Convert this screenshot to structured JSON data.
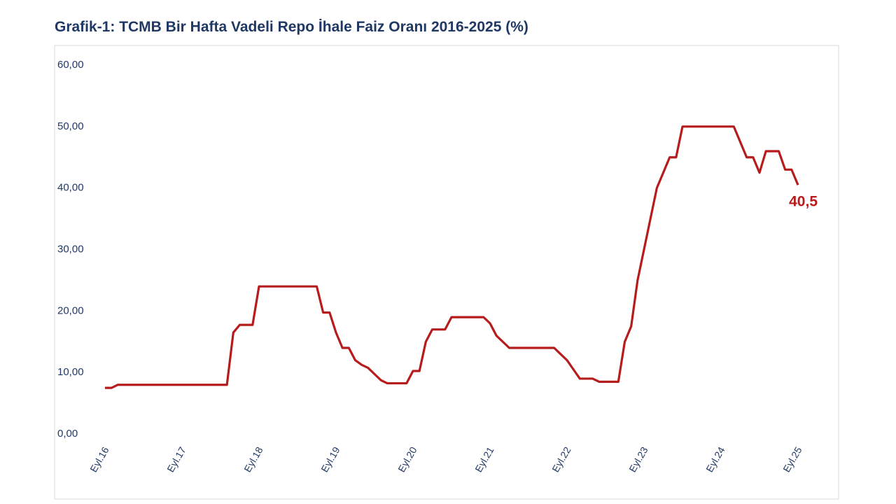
{
  "chart_data": {
    "type": "line",
    "title": "Grafik-1: TCMB Bir Hafta Vadeli Repo İhale Faiz Oranı 2016-2025 (%)",
    "x": [
      "2016-09",
      "2016-10",
      "2016-11",
      "2016-12",
      "2017-01",
      "2017-02",
      "2017-03",
      "2017-04",
      "2017-05",
      "2017-06",
      "2017-07",
      "2017-08",
      "2017-09",
      "2017-10",
      "2017-11",
      "2017-12",
      "2018-01",
      "2018-02",
      "2018-03",
      "2018-04",
      "2018-05",
      "2018-06",
      "2018-07",
      "2018-08",
      "2018-09",
      "2018-10",
      "2018-11",
      "2018-12",
      "2019-01",
      "2019-02",
      "2019-03",
      "2019-04",
      "2019-05",
      "2019-06",
      "2019-07",
      "2019-08",
      "2019-09",
      "2019-10",
      "2019-11",
      "2019-12",
      "2020-01",
      "2020-02",
      "2020-03",
      "2020-04",
      "2020-05",
      "2020-06",
      "2020-07",
      "2020-08",
      "2020-09",
      "2020-10",
      "2020-11",
      "2020-12",
      "2021-01",
      "2021-02",
      "2021-03",
      "2021-04",
      "2021-05",
      "2021-06",
      "2021-07",
      "2021-08",
      "2021-09",
      "2021-10",
      "2021-11",
      "2021-12",
      "2022-01",
      "2022-02",
      "2022-03",
      "2022-04",
      "2022-05",
      "2022-06",
      "2022-07",
      "2022-08",
      "2022-09",
      "2022-10",
      "2022-11",
      "2022-12",
      "2023-01",
      "2023-02",
      "2023-03",
      "2023-04",
      "2023-05",
      "2023-06",
      "2023-07",
      "2023-08",
      "2023-09",
      "2023-10",
      "2023-11",
      "2023-12",
      "2024-01",
      "2024-02",
      "2024-03",
      "2024-04",
      "2024-05",
      "2024-06",
      "2024-07",
      "2024-08",
      "2024-09",
      "2024-10",
      "2024-11",
      "2024-12",
      "2025-01",
      "2025-02",
      "2025-03",
      "2025-04",
      "2025-05",
      "2025-06",
      "2025-07",
      "2025-08",
      "2025-09"
    ],
    "values": [
      7.5,
      7.5,
      8,
      8,
      8,
      8,
      8,
      8,
      8,
      8,
      8,
      8,
      8,
      8,
      8,
      8,
      8,
      8,
      8,
      8,
      16.5,
      17.75,
      17.75,
      17.75,
      24,
      24,
      24,
      24,
      24,
      24,
      24,
      24,
      24,
      24,
      19.75,
      19.75,
      16.5,
      14,
      14,
      12,
      11.25,
      10.75,
      9.75,
      8.75,
      8.25,
      8.25,
      8.25,
      8.25,
      10.25,
      10.25,
      15,
      17,
      17,
      17,
      19,
      19,
      19,
      19,
      19,
      19,
      18,
      16,
      15,
      14,
      14,
      14,
      14,
      14,
      14,
      14,
      14,
      13,
      12,
      10.5,
      9,
      9,
      9,
      8.5,
      8.5,
      8.5,
      8.5,
      15,
      17.5,
      25,
      30,
      35,
      40,
      42.5,
      45,
      45,
      50,
      50,
      50,
      50,
      50,
      50,
      50,
      50,
      50,
      47.5,
      45,
      45,
      42.5,
      46,
      46,
      46,
      43,
      43,
      40.5
    ],
    "color": "#b71c1c",
    "end_label": "40,5",
    "xlim": [
      "2016-09",
      "2025-09"
    ],
    "xticks": [
      {
        "value": "2016-09",
        "label": "Eyl.16"
      },
      {
        "value": "2017-09",
        "label": "Eyl.17"
      },
      {
        "value": "2018-09",
        "label": "Eyl.18"
      },
      {
        "value": "2019-09",
        "label": "Eyl.19"
      },
      {
        "value": "2020-09",
        "label": "Eyl.20"
      },
      {
        "value": "2021-09",
        "label": "Eyl.21"
      },
      {
        "value": "2022-09",
        "label": "Eyl.22"
      },
      {
        "value": "2023-09",
        "label": "Eyl.23"
      },
      {
        "value": "2024-09",
        "label": "Eyl.24"
      },
      {
        "value": "2025-09",
        "label": "Eyl.25"
      }
    ],
    "ylim": [
      0,
      60
    ],
    "yticks": [
      {
        "value": 0,
        "label": "0,00"
      },
      {
        "value": 10,
        "label": "10,00"
      },
      {
        "value": 20,
        "label": "20,00"
      },
      {
        "value": 30,
        "label": "30,00"
      },
      {
        "value": 40,
        "label": "40,00"
      },
      {
        "value": 50,
        "label": "50,00"
      },
      {
        "value": 60,
        "label": "60,00"
      }
    ]
  }
}
